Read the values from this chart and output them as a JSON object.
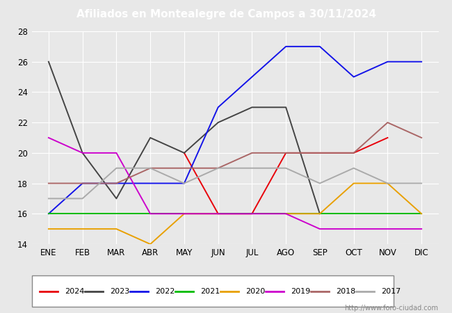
{
  "title": "Afiliados en Montealegre de Campos a 30/11/2024",
  "ylim": [
    14,
    28
  ],
  "yticks": [
    14,
    16,
    18,
    20,
    22,
    24,
    26,
    28
  ],
  "months": [
    "ENE",
    "FEB",
    "MAR",
    "ABR",
    "MAY",
    "JUN",
    "JUL",
    "AGO",
    "SEP",
    "OCT",
    "NOV",
    "DIC"
  ],
  "series": {
    "2024": {
      "color": "#e8000a",
      "data": [
        null,
        null,
        null,
        null,
        20,
        16,
        16,
        20,
        20,
        20,
        21,
        null
      ]
    },
    "2023": {
      "color": "#444444",
      "data": [
        26,
        20,
        17,
        21,
        20,
        22,
        23,
        23,
        16,
        null,
        null,
        null
      ]
    },
    "2022": {
      "color": "#1414e8",
      "data": [
        16,
        18,
        18,
        18,
        18,
        23,
        25,
        27,
        27,
        25,
        26,
        26
      ]
    },
    "2021": {
      "color": "#00bb00",
      "data": [
        16,
        16,
        16,
        16,
        16,
        16,
        16,
        16,
        16,
        16,
        16,
        16
      ]
    },
    "2020": {
      "color": "#e8a000",
      "data": [
        15,
        15,
        15,
        14,
        16,
        16,
        null,
        16,
        16,
        18,
        18,
        16
      ]
    },
    "2019": {
      "color": "#cc00cc",
      "data": [
        21,
        20,
        20,
        16,
        16,
        16,
        16,
        16,
        15,
        15,
        15,
        15
      ]
    },
    "2018": {
      "color": "#aa6666",
      "data": [
        18,
        18,
        18,
        19,
        19,
        19,
        20,
        20,
        20,
        20,
        22,
        21
      ]
    },
    "2017": {
      "color": "#aaaaaa",
      "data": [
        17,
        17,
        19,
        19,
        18,
        19,
        19,
        19,
        18,
        19,
        18,
        18
      ]
    }
  },
  "title_bg_color": "#4472c4",
  "title_text_color": "#ffffff",
  "plot_bg_color": "#e8e8e8",
  "fig_bg_color": "#e8e8e8",
  "grid_color": "#ffffff",
  "watermark": "http://www.foro-ciudad.com",
  "legend_order": [
    "2024",
    "2023",
    "2022",
    "2021",
    "2020",
    "2019",
    "2018",
    "2017"
  ]
}
